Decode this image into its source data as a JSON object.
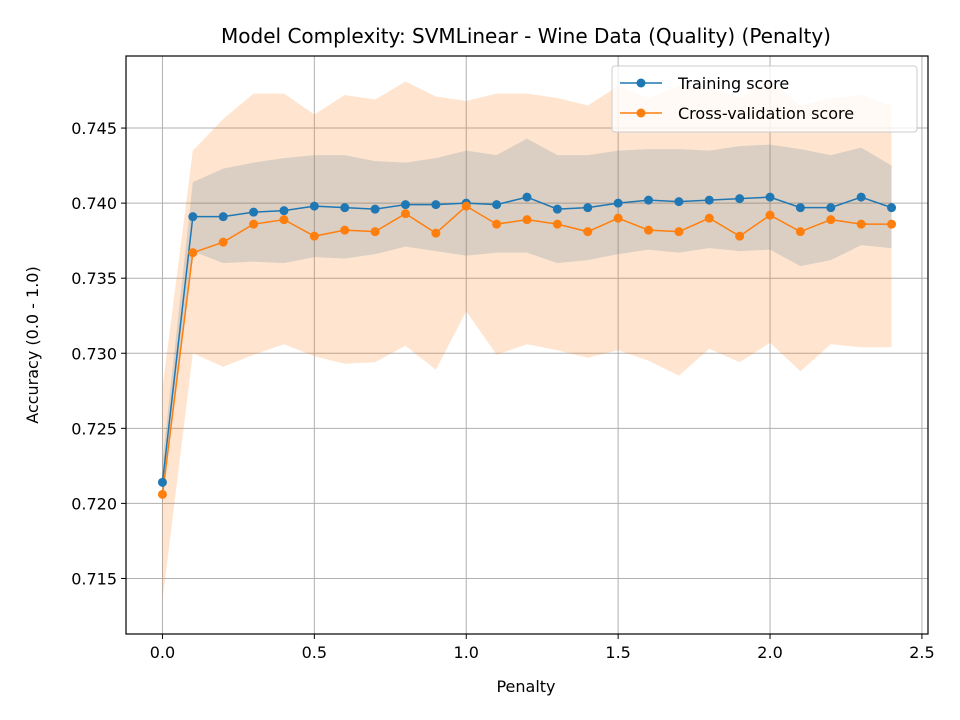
{
  "chart_data": {
    "type": "line",
    "title": "Model Complexity: SVMLinear - Wine Data (Quality) (Penalty)",
    "xlabel": "Penalty",
    "ylabel": "Accuracy (0.0 - 1.0)",
    "xlim": [
      -0.12,
      2.52
    ],
    "ylim": [
      0.7113,
      0.7498
    ],
    "xticks": [
      0.0,
      0.5,
      1.0,
      1.5,
      2.0,
      2.5
    ],
    "xtick_labels": [
      "0.0",
      "0.5",
      "1.0",
      "1.5",
      "2.0",
      "2.5"
    ],
    "yticks": [
      0.715,
      0.72,
      0.725,
      0.73,
      0.735,
      0.74,
      0.745
    ],
    "ytick_labels": [
      "0.715",
      "0.720",
      "0.725",
      "0.730",
      "0.735",
      "0.740",
      "0.745"
    ],
    "grid": true,
    "legend_position": "top-right",
    "x": [
      0.0,
      0.1,
      0.2,
      0.3,
      0.4,
      0.5,
      0.6,
      0.7,
      0.8,
      0.9,
      1.0,
      1.1,
      1.2,
      1.3,
      1.4,
      1.5,
      1.6,
      1.7,
      1.8,
      1.9,
      2.0,
      2.1,
      2.2,
      2.3,
      2.4
    ],
    "series": [
      {
        "name": "Training score",
        "color": "#1f77b4",
        "values": [
          0.7214,
          0.7391,
          0.7391,
          0.7394,
          0.7395,
          0.7398,
          0.7397,
          0.7396,
          0.7399,
          0.7399,
          0.74,
          0.7399,
          0.7404,
          0.7396,
          0.7397,
          0.74,
          0.7402,
          0.7401,
          0.7402,
          0.7403,
          0.7404,
          0.7397,
          0.7397,
          0.7404,
          0.7397
        ],
        "band_upper": [
          0.7228,
          0.7414,
          0.7423,
          0.7427,
          0.743,
          0.7432,
          0.7432,
          0.7428,
          0.7427,
          0.743,
          0.7435,
          0.7432,
          0.7443,
          0.7432,
          0.7432,
          0.7435,
          0.7436,
          0.7436,
          0.7435,
          0.7438,
          0.7439,
          0.7436,
          0.7432,
          0.7437,
          0.7425
        ],
        "band_lower": [
          0.72,
          0.7368,
          0.736,
          0.7361,
          0.736,
          0.7364,
          0.7363,
          0.7366,
          0.7371,
          0.7368,
          0.7365,
          0.7367,
          0.7367,
          0.736,
          0.7362,
          0.7366,
          0.7369,
          0.7367,
          0.737,
          0.7368,
          0.7369,
          0.7358,
          0.7362,
          0.7372,
          0.737
        ]
      },
      {
        "name": "Cross-validation score",
        "color": "#ff7f0e",
        "values": [
          0.7206,
          0.7367,
          0.7374,
          0.7386,
          0.7389,
          0.7378,
          0.7382,
          0.7381,
          0.7393,
          0.738,
          0.7398,
          0.7386,
          0.7389,
          0.7386,
          0.7381,
          0.739,
          0.7382,
          0.7381,
          0.739,
          0.7378,
          0.7392,
          0.7381,
          0.7389,
          0.7386,
          0.7386
        ],
        "band_upper": [
          0.7277,
          0.7435,
          0.7456,
          0.7473,
          0.7473,
          0.7459,
          0.7472,
          0.7469,
          0.7481,
          0.7471,
          0.7468,
          0.7473,
          0.7473,
          0.747,
          0.7465,
          0.7478,
          0.747,
          0.7478,
          0.7477,
          0.747,
          0.7482,
          0.7465,
          0.747,
          0.7472,
          0.7465
        ],
        "band_lower": [
          0.7135,
          0.73,
          0.7291,
          0.7299,
          0.7306,
          0.7298,
          0.7293,
          0.7294,
          0.7305,
          0.7289,
          0.7328,
          0.7299,
          0.7306,
          0.7302,
          0.7297,
          0.7302,
          0.7295,
          0.7285,
          0.7303,
          0.7294,
          0.7307,
          0.7288,
          0.7306,
          0.7304,
          0.7304
        ]
      }
    ]
  }
}
